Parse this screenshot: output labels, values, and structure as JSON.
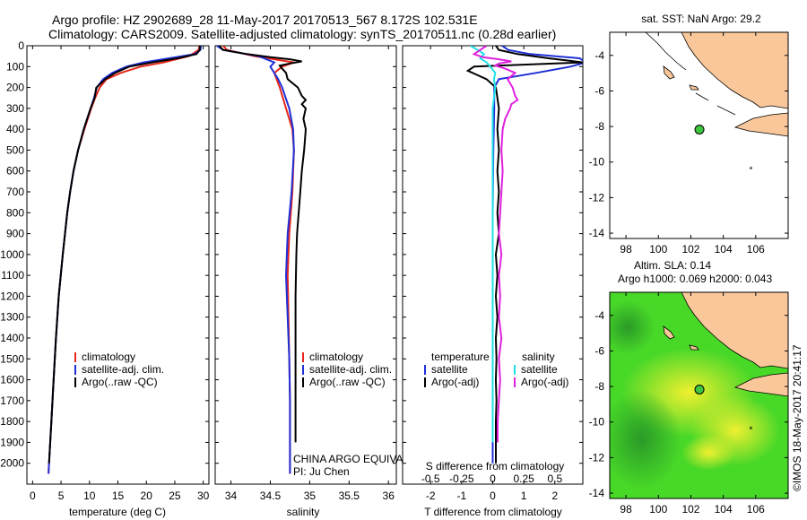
{
  "header": {
    "title_line1": "Argo profile: HZ 2902689_28 11-May-2017 20170513_567 8.172S 102.531E",
    "title_line2": "Climatology: CARS2009. Satellite-adjusted climatology: synTS_20170511.nc (0.28d earlier)"
  },
  "colors": {
    "climatology": "#e8261a",
    "satellite": "#2030d8",
    "argo": "#000000",
    "sat_salinity": "#20e0e8",
    "argo_salinity": "#e020e0",
    "land": "#f9c79a",
    "sea_white": "#ffffff",
    "sea_green": "#48d828",
    "marker": "#3ec43e"
  },
  "chart_data": [
    {
      "type": "line",
      "panel": "temperature",
      "xlabel": "temperature (deg C)",
      "ylabel": "",
      "xlim": [
        -1,
        31
      ],
      "ylim": [
        2100,
        0
      ],
      "xticks": [
        0,
        5,
        10,
        15,
        20,
        25,
        30
      ],
      "yticks": [
        0,
        100,
        200,
        300,
        400,
        500,
        600,
        700,
        800,
        900,
        1000,
        1100,
        1200,
        1300,
        1400,
        1500,
        1600,
        1700,
        1800,
        1900,
        2000
      ],
      "legend": {
        "placement": "lower-center",
        "entries": [
          "climatology",
          "satellite-adj. clim.",
          "Argo(..raw -QC)"
        ]
      },
      "series": [
        {
          "name": "climatology",
          "color_key": "climatology",
          "depth": [
            0,
            20,
            50,
            80,
            100,
            130,
            160,
            200,
            250,
            300,
            400,
            500,
            600,
            700,
            800,
            900,
            1000,
            1200,
            1400,
            1600,
            1800,
            2000,
            2050
          ],
          "values": [
            29.3,
            29.2,
            27.5,
            23.0,
            19.0,
            15.5,
            13.0,
            11.8,
            11.0,
            10.3,
            9.1,
            8.0,
            7.2,
            6.6,
            6.1,
            5.7,
            5.3,
            4.6,
            4.1,
            3.7,
            3.3,
            2.9,
            2.8
          ]
        },
        {
          "name": "satellite-adj. clim.",
          "color_key": "satellite",
          "depth": [
            0,
            20,
            40,
            60,
            80,
            100,
            130,
            160,
            200,
            250,
            300,
            400,
            500,
            600,
            700,
            800,
            900,
            1000,
            1200,
            1400,
            1600,
            1800,
            2000,
            2050
          ],
          "values": [
            29.6,
            29.5,
            28.5,
            24.0,
            19.5,
            16.5,
            14.0,
            12.4,
            11.3,
            10.8,
            10.2,
            9.0,
            8.0,
            7.2,
            6.6,
            6.1,
            5.7,
            5.3,
            4.6,
            4.1,
            3.7,
            3.3,
            2.9,
            2.8
          ]
        },
        {
          "name": "Argo(..raw -QC)",
          "color_key": "argo",
          "depth": [
            0,
            20,
            40,
            60,
            80,
            100,
            130,
            160,
            200,
            250,
            300,
            400,
            500,
            600,
            700,
            800,
            900,
            1000,
            1200,
            1400,
            1600,
            1800,
            2000
          ],
          "values": [
            29.4,
            29.4,
            28.8,
            25.5,
            21.0,
            17.0,
            14.5,
            12.8,
            11.2,
            10.9,
            10.2,
            9.0,
            8.0,
            7.2,
            6.6,
            6.1,
            5.7,
            5.3,
            4.6,
            4.1,
            3.7,
            3.3,
            2.9
          ]
        }
      ]
    },
    {
      "type": "line",
      "panel": "salinity",
      "xlabel": "salinity",
      "xlim": [
        33.8,
        36.1
      ],
      "ylim": [
        2100,
        0
      ],
      "xticks": [
        34,
        34.5,
        35,
        35.5,
        36
      ],
      "legend": {
        "placement": "lower-center",
        "entries": [
          "climatology",
          "satellite-adj. clim.",
          "Argo(..raw -QC)"
        ]
      },
      "annotation_lines": [
        "CHINA ARGO EQUIVALENT",
        "PI: Ju Chen"
      ],
      "series": [
        {
          "name": "climatology",
          "color_key": "climatology",
          "depth": [
            0,
            20,
            50,
            80,
            100,
            130,
            160,
            200,
            300,
            400,
            500,
            700,
            900,
            1100,
            1300,
            1500,
            1700,
            1900,
            2050
          ],
          "values": [
            33.9,
            33.95,
            34.3,
            34.8,
            34.65,
            34.55,
            34.58,
            34.62,
            34.7,
            34.78,
            34.8,
            34.78,
            34.74,
            34.72,
            34.73,
            34.74,
            34.75,
            34.75,
            34.75
          ]
        },
        {
          "name": "satellite-adj. clim.",
          "color_key": "satellite",
          "depth": [
            0,
            20,
            50,
            80,
            100,
            130,
            160,
            200,
            300,
            400,
            500,
            700,
            900,
            1100,
            1300,
            1500,
            1700,
            1900,
            2050
          ],
          "values": [
            33.82,
            33.9,
            34.35,
            34.55,
            34.5,
            34.55,
            34.6,
            34.65,
            34.74,
            34.79,
            34.8,
            34.77,
            34.72,
            34.7,
            34.72,
            34.74,
            34.75,
            34.75,
            34.75
          ]
        },
        {
          "name": "Argo(..raw -QC)",
          "color_key": "argo",
          "depth": [
            0,
            20,
            40,
            55,
            65,
            75,
            85,
            95,
            110,
            130,
            160,
            200,
            240,
            260,
            280,
            300,
            350,
            400,
            500,
            600,
            700,
            800,
            900,
            1000,
            1200,
            1400,
            1600,
            1800,
            1900
          ],
          "values": [
            33.85,
            33.9,
            34.2,
            34.5,
            34.75,
            34.9,
            34.75,
            34.62,
            34.65,
            34.7,
            34.72,
            34.85,
            34.9,
            34.95,
            34.9,
            34.95,
            34.92,
            34.95,
            34.93,
            34.9,
            34.88,
            34.86,
            34.84,
            34.83,
            34.82,
            34.82,
            34.82,
            34.82,
            34.82
          ]
        }
      ]
    },
    {
      "type": "line",
      "panel": "difference",
      "xlabel": "T difference from climatology",
      "top_label": "S difference from climatology",
      "xlim": [
        -2.9,
        2.9
      ],
      "ylim": [
        2100,
        0
      ],
      "xticks": [
        -2,
        -1,
        0,
        1,
        2
      ],
      "top_xticks": [
        -0.5,
        -0.25,
        0,
        0.25,
        0.5
      ],
      "top_xlim": [
        -0.725,
        0.725
      ],
      "legend": {
        "placement": "lower-center",
        "groups": [
          {
            "title": "temperature",
            "entries": [
              "satellite",
              "Argo(-adj)"
            ]
          },
          {
            "title": "salinity",
            "entries": [
              "satellite",
              "Argo(-adj)"
            ]
          }
        ]
      },
      "series": [
        {
          "name": "temperature satellite",
          "color_key": "satellite",
          "axis": "T",
          "depth": [
            0,
            20,
            40,
            60,
            80,
            100,
            130,
            160,
            200,
            300,
            500,
            800,
            1200,
            1600,
            2000
          ],
          "values": [
            0.3,
            0.5,
            1.2,
            2.8,
            3.0,
            2.5,
            1.4,
            0.2,
            0.05,
            0.05,
            0.02,
            0.0,
            0.0,
            0.0,
            0.0
          ]
        },
        {
          "name": "temperature Argo(-adj)",
          "color_key": "argo",
          "axis": "T",
          "depth": [
            0,
            20,
            40,
            60,
            80,
            100,
            120,
            140,
            160,
            200,
            250,
            300,
            400,
            500,
            600,
            700,
            800,
            900,
            1000,
            1100,
            1200,
            1300,
            1400,
            1500,
            1600,
            1700,
            1800,
            1900,
            2000
          ],
          "values": [
            0.1,
            0.2,
            0.8,
            1.8,
            2.9,
            -0.6,
            -0.8,
            -0.5,
            -0.2,
            0.1,
            0.15,
            0.2,
            0.15,
            0.2,
            0.15,
            0.2,
            0.15,
            0.2,
            0.1,
            0.15,
            0.1,
            0.15,
            0.1,
            0.12,
            0.1,
            0.12,
            0.1,
            0.1,
            0.1
          ]
        },
        {
          "name": "salinity satellite",
          "color_key": "sat_salinity",
          "axis": "S",
          "depth": [
            0,
            20,
            40,
            60,
            80,
            100,
            130,
            160,
            200,
            300,
            500,
            700,
            1000,
            1300,
            1600,
            1900
          ],
          "values": [
            -0.18,
            -0.12,
            -0.07,
            -0.1,
            -0.05,
            -0.02,
            0.02,
            0.01,
            0.02,
            0.0,
            0.0,
            0.0,
            0.0,
            0.0,
            0.0,
            0.0
          ]
        },
        {
          "name": "salinity Argo(-adj)",
          "color_key": "argo_salinity",
          "axis": "S",
          "depth": [
            0,
            20,
            40,
            55,
            65,
            75,
            85,
            95,
            110,
            130,
            160,
            200,
            240,
            260,
            280,
            300,
            350,
            400,
            500,
            600,
            700,
            800,
            900,
            1000,
            1100,
            1200,
            1300,
            1400,
            1500,
            1600,
            1700,
            1800,
            1900
          ],
          "values": [
            -0.05,
            -0.1,
            -0.15,
            -0.08,
            0.05,
            0.15,
            0.05,
            0.02,
            0.1,
            0.18,
            0.12,
            0.16,
            0.18,
            0.2,
            0.15,
            0.14,
            0.1,
            0.08,
            0.07,
            0.08,
            0.07,
            0.06,
            0.05,
            0.07,
            0.05,
            0.06,
            0.05,
            0.07,
            0.05,
            0.06,
            0.05,
            0.04,
            0.04
          ]
        }
      ]
    },
    {
      "type": "map",
      "panel": "sst_map",
      "title": "sat. SST: NaN Argo: 29.2",
      "xlim": [
        97,
        108
      ],
      "ylim": [
        -14.3,
        -2.7
      ],
      "xticks": [
        98,
        100,
        102,
        104,
        106
      ],
      "yticks": [
        -4,
        -6,
        -8,
        -10,
        -12,
        -14
      ],
      "argo_position": [
        102.531,
        -8.172
      ],
      "other_marker": [
        105.7,
        -10.45
      ]
    },
    {
      "type": "map",
      "panel": "sla_map",
      "title_line1": "Altim. SLA: 0.14",
      "title_line2": "Argo h1000: 0.069 h2000: 0.043",
      "xlim": [
        97,
        108
      ],
      "ylim": [
        -14.3,
        -2.7
      ],
      "xticks": [
        98,
        100,
        102,
        104,
        106
      ],
      "yticks": [
        -4,
        -6,
        -8,
        -10,
        -12,
        -14
      ],
      "argo_position": [
        102.531,
        -8.172
      ],
      "other_marker": [
        105.7,
        -10.45
      ]
    }
  ],
  "footer": {
    "credit": "©IMOS 18-May-2017 20:41:17"
  }
}
